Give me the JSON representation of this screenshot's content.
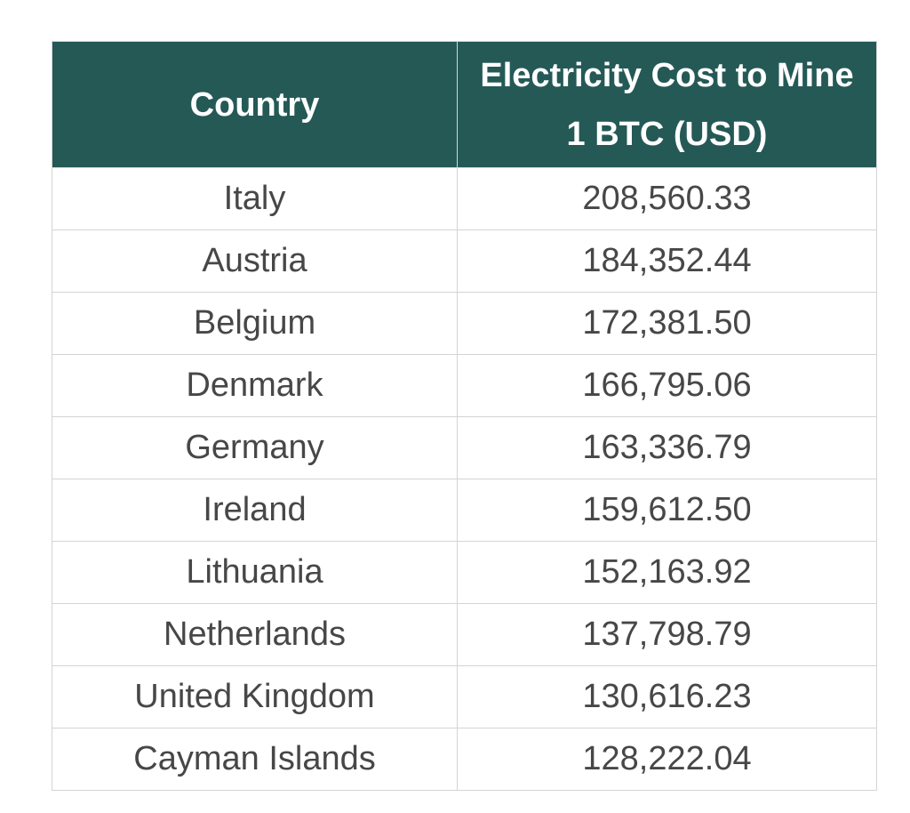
{
  "table": {
    "headers": [
      "Country",
      "Electricity Cost to Mine 1 BTC (USD)"
    ],
    "rows": [
      [
        "Italy",
        "208,560.33"
      ],
      [
        "Austria",
        "184,352.44"
      ],
      [
        "Belgium",
        "172,381.50"
      ],
      [
        "Denmark",
        "166,795.06"
      ],
      [
        "Germany",
        "163,336.79"
      ],
      [
        "Ireland",
        "159,612.50"
      ],
      [
        "Lithuania",
        "152,163.92"
      ],
      [
        "Netherlands",
        "137,798.79"
      ],
      [
        "United Kingdom",
        "130,616.23"
      ],
      [
        "Cayman Islands",
        "128,222.04"
      ]
    ]
  }
}
